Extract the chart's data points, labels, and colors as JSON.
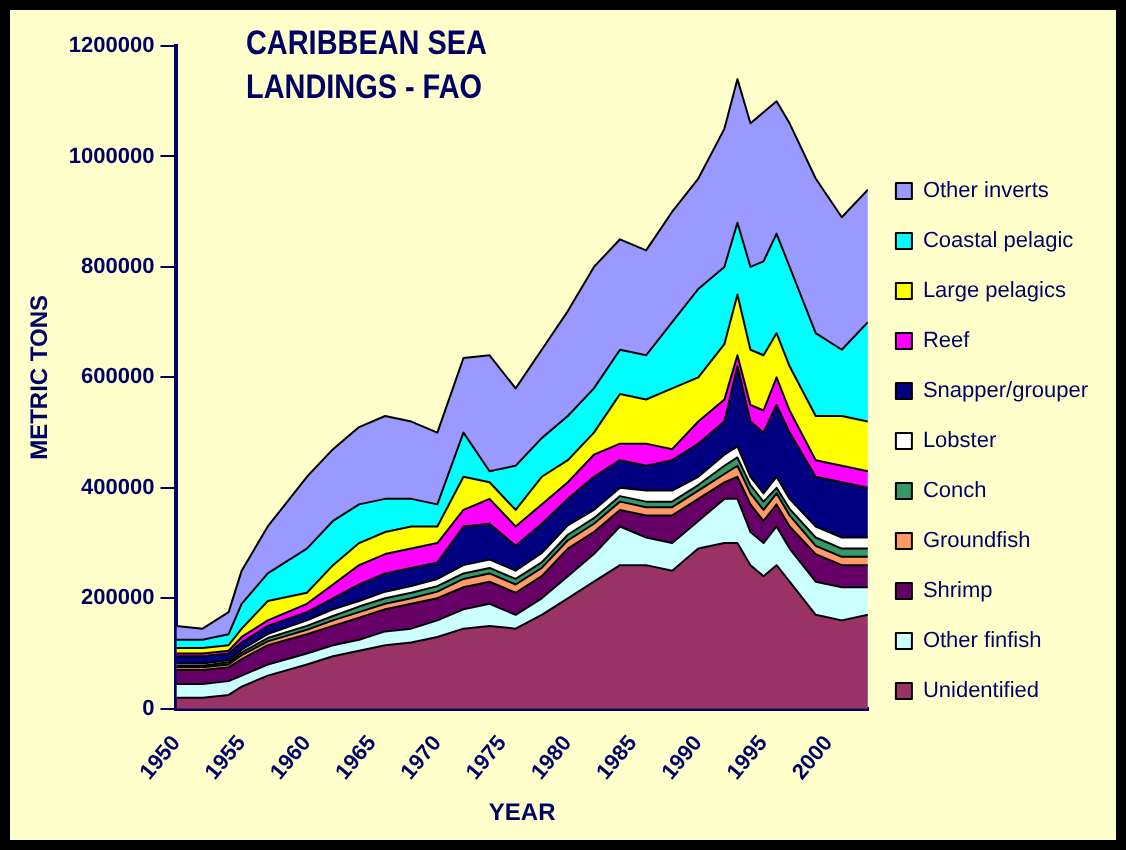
{
  "chart_data": {
    "type": "area",
    "stacked": true,
    "title": "CARIBBEAN SEA LANDINGS - FAO",
    "xlabel": "YEAR",
    "ylabel": "METRIC TONS",
    "x": [
      1950,
      1952,
      1954,
      1955,
      1957,
      1960,
      1962,
      1964,
      1966,
      1968,
      1970,
      1972,
      1974,
      1976,
      1978,
      1980,
      1982,
      1984,
      1986,
      1988,
      1990,
      1992,
      1993,
      1994,
      1995,
      1996,
      1997,
      1999,
      2001,
      2003
    ],
    "xlim": [
      1950,
      2003
    ],
    "xticks": [
      1950,
      1955,
      1960,
      1965,
      1970,
      1975,
      1980,
      1985,
      1990,
      1995,
      2000
    ],
    "ylim": [
      0,
      1200000
    ],
    "yticks": [
      0,
      200000,
      400000,
      600000,
      800000,
      1000000,
      1200000
    ],
    "grid": false,
    "legend": "right",
    "series": [
      {
        "name": "Unidentified",
        "color": "#993366",
        "values": [
          20000,
          20000,
          25000,
          40000,
          60000,
          80000,
          95000,
          105000,
          115000,
          120000,
          130000,
          145000,
          150000,
          145000,
          170000,
          200000,
          230000,
          260000,
          260000,
          250000,
          290000,
          300000,
          300000,
          260000,
          240000,
          260000,
          230000,
          170000,
          160000,
          170000
        ]
      },
      {
        "name": "Other finfish",
        "color": "#ccffff",
        "values": [
          25000,
          25000,
          25000,
          20000,
          20000,
          20000,
          20000,
          20000,
          25000,
          25000,
          30000,
          35000,
          40000,
          25000,
          30000,
          40000,
          50000,
          70000,
          50000,
          50000,
          50000,
          80000,
          80000,
          60000,
          60000,
          70000,
          60000,
          60000,
          60000,
          50000
        ]
      },
      {
        "name": "Shrimp",
        "color": "#660066",
        "values": [
          25000,
          25000,
          25000,
          30000,
          35000,
          35000,
          35000,
          40000,
          40000,
          45000,
          40000,
          40000,
          40000,
          40000,
          40000,
          50000,
          40000,
          30000,
          40000,
          50000,
          40000,
          30000,
          40000,
          50000,
          40000,
          40000,
          40000,
          50000,
          40000,
          40000
        ]
      },
      {
        "name": "Groundfish",
        "color": "#ff9966",
        "values": [
          5000,
          5000,
          5000,
          7000,
          7000,
          8000,
          10000,
          10000,
          10000,
          10000,
          12000,
          15000,
          15000,
          15000,
          15000,
          15000,
          15000,
          15000,
          15000,
          15000,
          15000,
          15000,
          20000,
          20000,
          20000,
          20000,
          20000,
          15000,
          15000,
          15000
        ]
      },
      {
        "name": "Conch",
        "color": "#339966",
        "values": [
          3000,
          3000,
          4000,
          5000,
          6000,
          7000,
          8000,
          10000,
          10000,
          10000,
          10000,
          10000,
          10000,
          10000,
          10000,
          10000,
          10000,
          10000,
          10000,
          10000,
          10000,
          15000,
          15000,
          15000,
          15000,
          10000,
          12000,
          15000,
          15000,
          15000
        ]
      },
      {
        "name": "Lobster",
        "color": "#ffffff",
        "values": [
          4000,
          4000,
          4000,
          5000,
          7000,
          10000,
          12000,
          10000,
          12000,
          12000,
          13000,
          15000,
          15000,
          15000,
          17000,
          17000,
          15000,
          15000,
          20000,
          20000,
          15000,
          20000,
          20000,
          15000,
          15000,
          20000,
          18000,
          20000,
          20000,
          20000
        ]
      },
      {
        "name": "Snapper/grouper",
        "color": "#000080",
        "values": [
          13000,
          13000,
          12000,
          13000,
          15000,
          15000,
          20000,
          30000,
          33000,
          33000,
          30000,
          70000,
          65000,
          45000,
          53000,
          48000,
          60000,
          50000,
          45000,
          55000,
          60000,
          60000,
          145000,
          100000,
          110000,
          130000,
          120000,
          90000,
          100000,
          90000
        ]
      },
      {
        "name": "Reef",
        "color": "#ff00ff",
        "values": [
          5000,
          5000,
          5000,
          10000,
          10000,
          15000,
          25000,
          35000,
          35000,
          35000,
          35000,
          30000,
          45000,
          35000,
          35000,
          30000,
          40000,
          30000,
          40000,
          20000,
          40000,
          40000,
          20000,
          30000,
          40000,
          50000,
          40000,
          30000,
          30000,
          30000
        ]
      },
      {
        "name": "Large pelagics",
        "color": "#ffff00",
        "values": [
          10000,
          10000,
          10000,
          15000,
          35000,
          20000,
          35000,
          40000,
          40000,
          40000,
          30000,
          60000,
          30000,
          30000,
          50000,
          40000,
          40000,
          90000,
          80000,
          110000,
          80000,
          100000,
          110000,
          100000,
          100000,
          80000,
          80000,
          80000,
          90000,
          90000
        ]
      },
      {
        "name": "Coastal pelagic",
        "color": "#00ffff",
        "values": [
          15000,
          15000,
          20000,
          45000,
          50000,
          80000,
          80000,
          70000,
          60000,
          50000,
          40000,
          80000,
          20000,
          80000,
          70000,
          80000,
          80000,
          80000,
          80000,
          120000,
          160000,
          140000,
          130000,
          150000,
          170000,
          180000,
          180000,
          150000,
          120000,
          180000
        ]
      },
      {
        "name": "Other inverts",
        "color": "#9999ff",
        "values": [
          25000,
          20000,
          40000,
          60000,
          85000,
          130000,
          130000,
          140000,
          150000,
          140000,
          130000,
          135000,
          210000,
          140000,
          160000,
          190000,
          220000,
          200000,
          190000,
          200000,
          200000,
          250000,
          260000,
          260000,
          270000,
          240000,
          260000,
          280000,
          240000,
          240000
        ]
      }
    ]
  }
}
